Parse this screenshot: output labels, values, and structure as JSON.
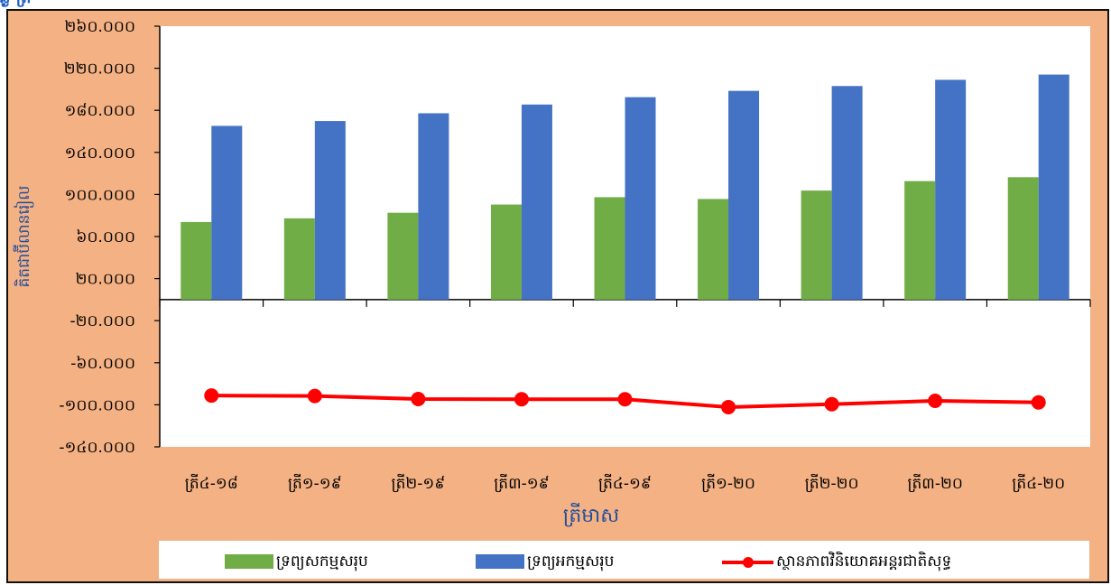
{
  "chart_data": {
    "type": "bar",
    "title": "",
    "xlabel": "ត្រីមាស",
    "ylabel": "គិតជាប៊ីលានរៀល",
    "categories": [
      "ត្រី៤-១៨",
      "ត្រី១-១៩",
      "ត្រី២-១៩",
      "ត្រី៣-១៩",
      "ត្រី៤-១៩",
      "ត្រី១-២០",
      "ត្រី២-២០",
      "ត្រី៣-២០",
      "ត្រី៤-២០"
    ],
    "series": [
      {
        "name": "ទ្រព្យសកម្មសរុប",
        "type": "bar",
        "color": "#70ad47",
        "values": [
          73.8,
          77.3,
          82.6,
          90.4,
          97.4,
          95.7,
          103.7,
          112.7,
          116.4
        ]
      },
      {
        "name": "ទ្រព្យអកម្មសរុប",
        "type": "bar",
        "color": "#4472c4",
        "values": [
          165.2,
          169.8,
          177.2,
          185.5,
          192.5,
          198.5,
          203.1,
          209.0,
          214.0
        ]
      },
      {
        "name": "ស្ថានភាពវិនិយោគអន្តរជាតិសុទ្ធ",
        "type": "line",
        "color": "#ff0000",
        "values": [
          -91.2,
          -91.6,
          -94.5,
          -94.7,
          -94.7,
          -102.2,
          -99.4,
          -96.2,
          -97.7
        ]
      }
    ],
    "ylim": [
      -140,
      260
    ],
    "yticks": [
      260,
      220,
      180,
      140,
      100,
      60,
      20,
      -20,
      -60,
      -100,
      -140
    ],
    "ytick_labels": [
      "២៦០.០០០",
      "២២០.០០០",
      "១៨០.០០០",
      "១៤០.០០០",
      "១០០.០០០",
      "៦០.០០០",
      "២០.០០០",
      "-២០.០០០",
      "-៦០.០០០",
      "-១០០.០០០",
      "-១៤០.០០០"
    ],
    "grid": false,
    "legend": "bottom",
    "colors": {
      "frame_background": "#f4b183",
      "plot_background": "#ffffff",
      "axis": "#000000",
      "ylabel": "#1f4e9d",
      "xlabel": "#1f4e9d"
    }
  }
}
